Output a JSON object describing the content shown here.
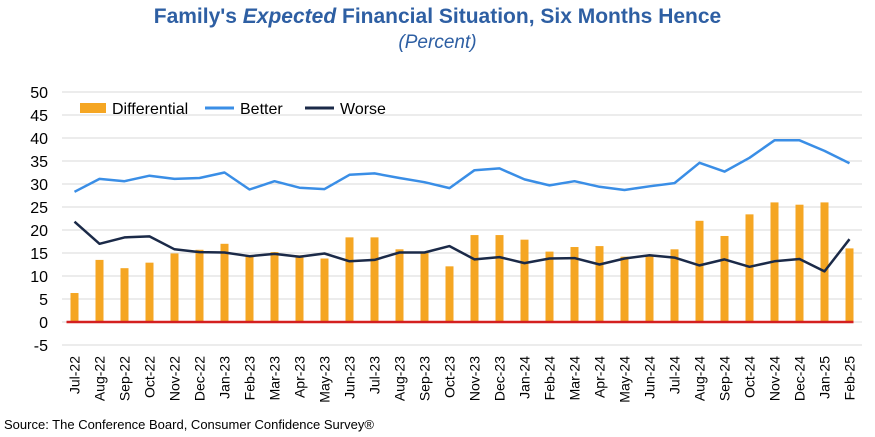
{
  "title_parts": {
    "pre": "Family's ",
    "emph": "Expected",
    "post": " Financial Situation, Six Months Hence"
  },
  "subtitle": "(Percent)",
  "source": "Source: The Conference Board, Consumer Confidence    Survey®",
  "colors": {
    "differential": "#f5a623",
    "better": "#3a8ee6",
    "worse": "#1b2a48",
    "zero_line": "#d42020",
    "title": "#2e5fa3"
  },
  "chart_data": {
    "type": "bar+line",
    "categories": [
      "Jul-22",
      "Aug-22",
      "Sep-22",
      "Oct-22",
      "Nov-22",
      "Dec-22",
      "Jan-23",
      "Feb-23",
      "Mar-23",
      "Apr-23",
      "May-23",
      "Jun-23",
      "Jul-23",
      "Aug-23",
      "Sep-23",
      "Oct-23",
      "Nov-23",
      "Dec-23",
      "Jan-24",
      "Feb-24",
      "Mar-24",
      "Apr-24",
      "May-24",
      "Jun-24",
      "Jul-24",
      "Aug-24",
      "Sep-24",
      "Oct-24",
      "Nov-24",
      "Dec-24",
      "Jan-25",
      "Feb-25"
    ],
    "series": [
      {
        "name": "Differential",
        "kind": "bar",
        "values": [
          6.3,
          13.5,
          11.7,
          12.9,
          14.9,
          15.7,
          17.0,
          14.5,
          15.2,
          14.5,
          13.8,
          18.4,
          18.4,
          15.8,
          15.3,
          12.1,
          18.9,
          18.9,
          17.9,
          15.3,
          16.3,
          16.5,
          14.2,
          14.5,
          15.8,
          22.0,
          18.7,
          23.4,
          26.0,
          25.5,
          26.0,
          16.0
        ]
      },
      {
        "name": "Better",
        "kind": "line",
        "values": [
          28.3,
          31.1,
          30.6,
          31.8,
          31.1,
          31.3,
          32.5,
          28.8,
          30.6,
          29.2,
          28.9,
          32.0,
          32.3,
          31.3,
          30.4,
          29.1,
          33.0,
          33.4,
          31.0,
          29.7,
          30.6,
          29.4,
          28.7,
          29.5,
          30.2,
          34.6,
          32.7,
          35.7,
          39.5,
          39.5,
          37.2,
          34.5
        ]
      },
      {
        "name": "Worse",
        "kind": "line",
        "values": [
          21.8,
          17.0,
          18.4,
          18.6,
          15.8,
          15.2,
          15.1,
          14.3,
          14.8,
          14.2,
          14.9,
          13.2,
          13.5,
          15.1,
          15.1,
          16.5,
          13.6,
          14.1,
          12.8,
          13.8,
          13.9,
          12.5,
          13.8,
          14.5,
          14.0,
          12.3,
          13.6,
          12.0,
          13.2,
          13.7,
          11.0,
          18.0
        ]
      }
    ],
    "y_ticks": [
      -5,
      0,
      5,
      10,
      15,
      20,
      25,
      30,
      35,
      40,
      45,
      50
    ],
    "ylim": [
      -5,
      50
    ],
    "grid": true,
    "legend": "top-left"
  }
}
